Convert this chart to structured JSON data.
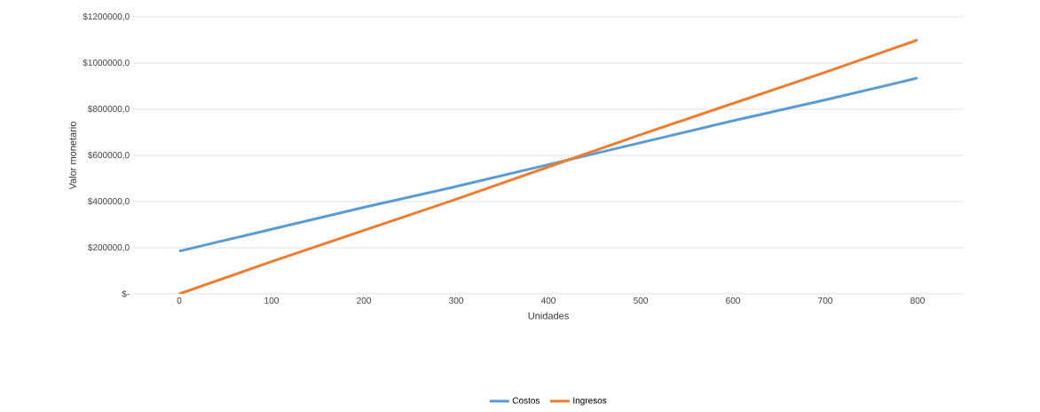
{
  "chart_data": {
    "type": "line",
    "xlabel": "Unidades",
    "ylabel": "Valor monetario",
    "categories": [
      "0",
      "100",
      "200",
      "300",
      "400",
      "500",
      "600",
      "700",
      "800"
    ],
    "series": [
      {
        "name": "Costos",
        "color": "#5b9bd5",
        "values": [
          185000,
          280000,
          375000,
          465000,
          560000,
          655000,
          750000,
          840000,
          935000
        ]
      },
      {
        "name": "Ingresos",
        "color": "#ed7d31",
        "values": [
          0,
          140000,
          275000,
          410000,
          550000,
          690000,
          825000,
          960000,
          1100000
        ]
      }
    ],
    "ylim": [
      0,
      1200000
    ],
    "yticks": [
      {
        "value": 0,
        "label": "$-"
      },
      {
        "value": 200000,
        "label": "$200000,0"
      },
      {
        "value": 400000,
        "label": "$400000,0"
      },
      {
        "value": 600000,
        "label": "$600000,0"
      },
      {
        "value": 800000,
        "label": "$800000,0"
      },
      {
        "value": 1000000,
        "label": "$1000000,0"
      },
      {
        "value": 1200000,
        "label": "$1200000,0"
      }
    ],
    "grid": "y",
    "legend": "bottom",
    "marker": "none",
    "line_style": "solid"
  }
}
